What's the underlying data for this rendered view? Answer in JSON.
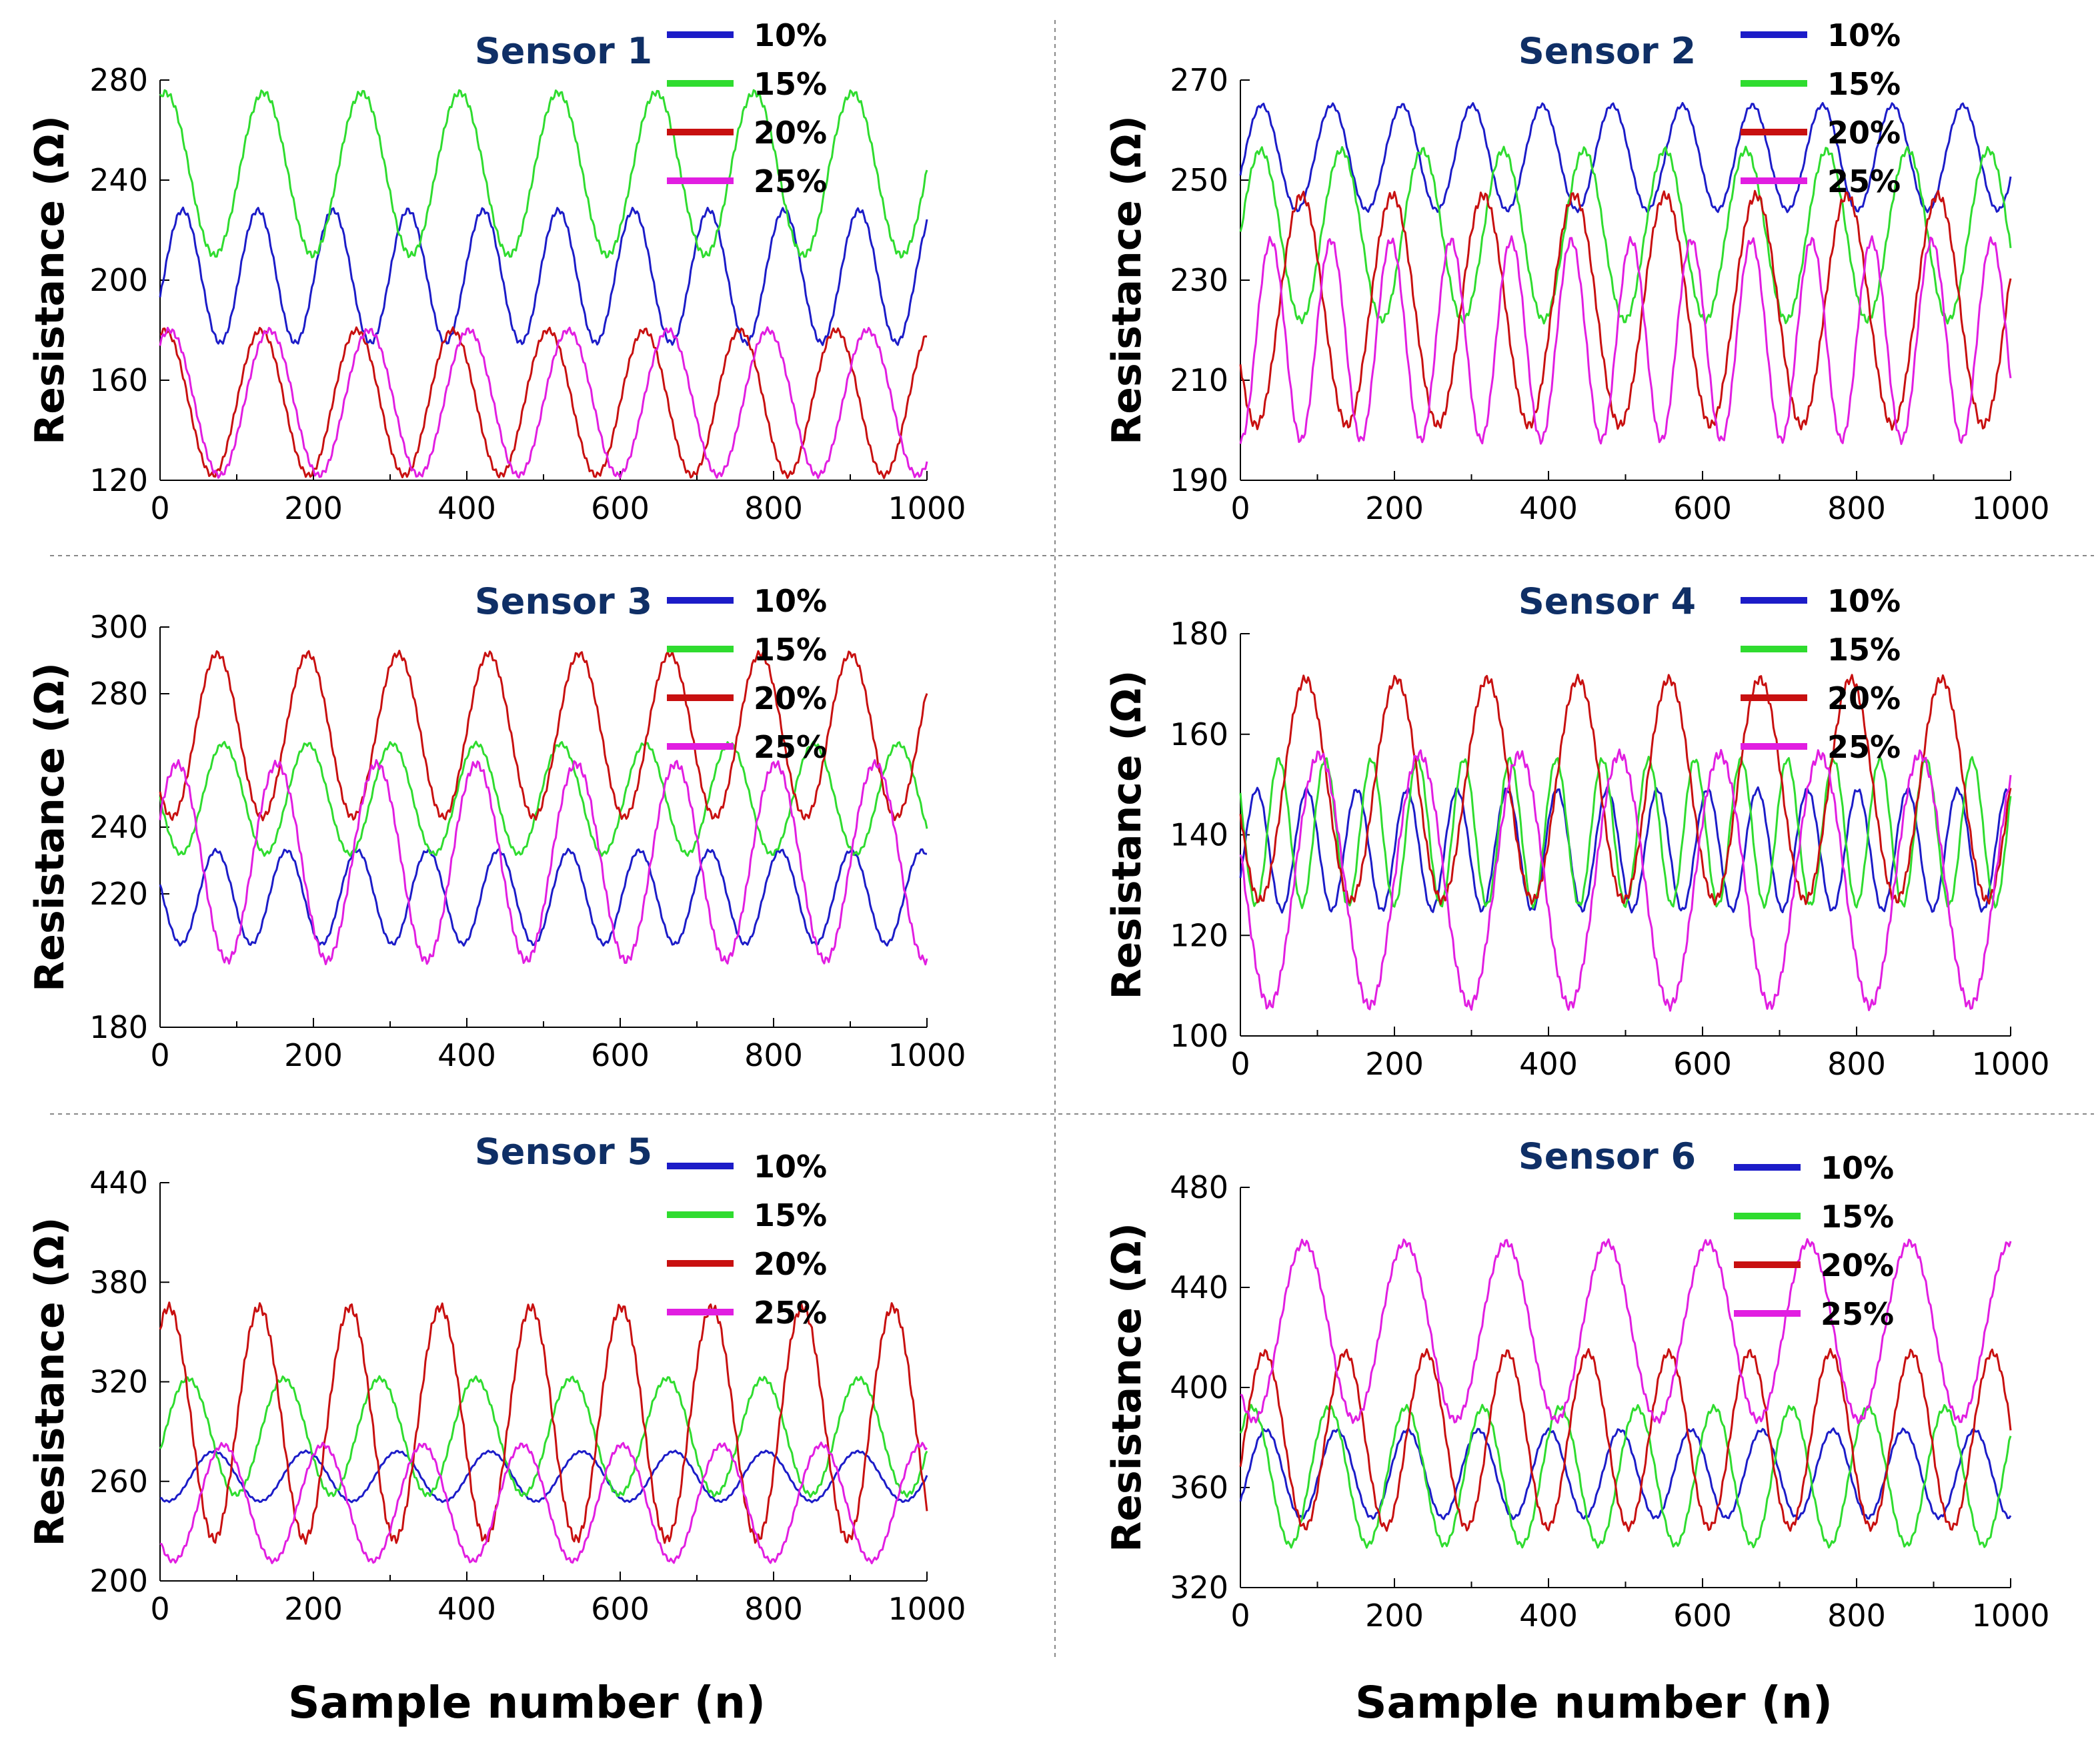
{
  "x_label": "Sample number (n)",
  "colors": {
    "10%": "#1c1cc8",
    "15%": "#2fdc2f",
    "20%": "#c81010",
    "25%": "#e11ee1"
  },
  "chart_data": [
    {
      "type": "line",
      "title": "Sensor 1",
      "xlabel": "Sample number (n)",
      "ylabel": "Resistance (Ω)",
      "xlim": [
        0,
        1000
      ],
      "ylim": [
        120,
        280
      ],
      "xticks": [
        0,
        200,
        400,
        600,
        800,
        1000
      ],
      "yticks": [
        120,
        160,
        200,
        240,
        280
      ],
      "series": [
        {
          "name": "10%",
          "period": 98,
          "phase": 5,
          "min": 175,
          "max": 228
        },
        {
          "name": "15%",
          "period": 128,
          "phase": -25,
          "min": 210,
          "max": 275
        },
        {
          "name": "20%",
          "period": 125,
          "phase": 100,
          "min": 122,
          "max": 180
        },
        {
          "name": "25%",
          "period": 130,
          "phase": 110,
          "min": 122,
          "max": 180
        }
      ]
    },
    {
      "type": "line",
      "title": "Sensor 2",
      "xlabel": "Sample number (n)",
      "ylabel": "Resistance (Ω)",
      "xlim": [
        0,
        1000
      ],
      "ylim": [
        190,
        270
      ],
      "xticks": [
        0,
        200,
        400,
        600,
        800,
        1000
      ],
      "yticks": [
        190,
        210,
        230,
        250,
        270
      ],
      "series": [
        {
          "name": "10%",
          "period": 91,
          "phase": 5,
          "min": 244,
          "max": 265
        },
        {
          "name": "15%",
          "period": 105,
          "phase": 0,
          "min": 222,
          "max": 256
        },
        {
          "name": "20%",
          "period": 118,
          "phase": 50,
          "min": 201,
          "max": 247
        },
        {
          "name": "25%",
          "period": 78,
          "phase": 20,
          "min": 198,
          "max": 238
        }
      ]
    },
    {
      "type": "line",
      "title": "Sensor 3",
      "xlabel": "Sample number (n)",
      "ylabel": "Resistance (Ω)",
      "xlim": [
        0,
        1000
      ],
      "ylim": [
        180,
        300
      ],
      "xticks": [
        0,
        200,
        400,
        600,
        800,
        1000
      ],
      "yticks": [
        180,
        220,
        240,
        280,
        300
      ],
      "series": [
        {
          "name": "10%",
          "period": 92,
          "phase": 50,
          "min": 205,
          "max": 233
        },
        {
          "name": "15%",
          "period": 110,
          "phase": 55,
          "min": 232,
          "max": 265
        },
        {
          "name": "20%",
          "period": 118,
          "phase": 45,
          "min": 243,
          "max": 292
        },
        {
          "name": "25%",
          "period": 130,
          "phase": 120,
          "min": 200,
          "max": 259
        }
      ]
    },
    {
      "type": "line",
      "title": "Sensor 4",
      "xlabel": "Sample number (n)",
      "ylabel": "Resistance (Ω)",
      "xlim": [
        0,
        1000
      ],
      "ylim": [
        100,
        180
      ],
      "xticks": [
        0,
        200,
        400,
        600,
        800,
        1000
      ],
      "yticks": [
        100,
        120,
        140,
        160,
        180
      ],
      "series": [
        {
          "name": "10%",
          "period": 65,
          "phase": 5,
          "min": 125,
          "max": 149
        },
        {
          "name": "15%",
          "period": 60,
          "phase": 35,
          "min": 126,
          "max": 155
        },
        {
          "name": "20%",
          "period": 118,
          "phase": 55,
          "min": 127,
          "max": 171
        },
        {
          "name": "25%",
          "period": 130,
          "phase": 70,
          "min": 106,
          "max": 156
        }
      ]
    },
    {
      "type": "line",
      "title": "Sensor 5",
      "xlabel": "Sample number (n)",
      "ylabel": "Resistance (Ω)",
      "xlim": [
        0,
        1000
      ],
      "ylim": [
        200,
        440
      ],
      "xticks": [
        0,
        200,
        400,
        600,
        800,
        1000
      ],
      "yticks": [
        200,
        260,
        320,
        380,
        440
      ],
      "series": [
        {
          "name": "10%",
          "period": 120,
          "phase": 40,
          "min": 248,
          "max": 278
        },
        {
          "name": "15%",
          "period": 125,
          "phase": 5,
          "min": 252,
          "max": 322
        },
        {
          "name": "20%",
          "period": 118,
          "phase": 100,
          "min": 225,
          "max": 365
        },
        {
          "name": "25%",
          "period": 130,
          "phase": 50,
          "min": 212,
          "max": 282
        }
      ]
    },
    {
      "type": "line",
      "title": "Sensor 6",
      "xlabel": "Sample number (n)",
      "ylabel": "Resistance (Ω)",
      "xlim": [
        0,
        1000
      ],
      "ylim": [
        320,
        480
      ],
      "xticks": [
        0,
        200,
        400,
        600,
        800,
        1000
      ],
      "yticks": [
        320,
        360,
        400,
        440,
        480
      ],
      "series": [
        {
          "name": "10%",
          "period": 92,
          "phase": 10,
          "min": 348,
          "max": 383
        },
        {
          "name": "15%",
          "period": 100,
          "phase": 90,
          "min": 337,
          "max": 392
        },
        {
          "name": "20%",
          "period": 105,
          "phase": 110,
          "min": 344,
          "max": 414
        },
        {
          "name": "25%",
          "period": 131,
          "phase": 50,
          "min": 387,
          "max": 458
        }
      ]
    }
  ]
}
